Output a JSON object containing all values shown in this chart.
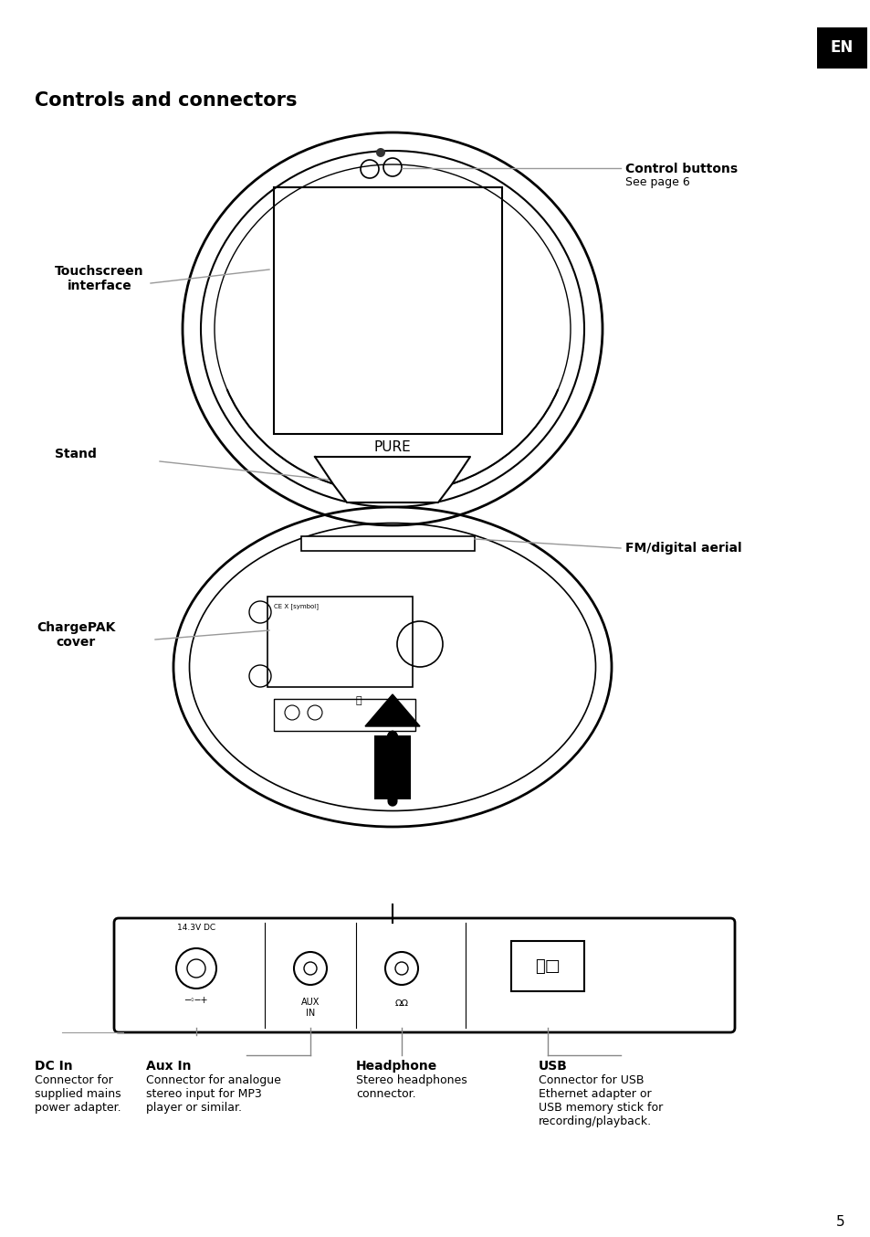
{
  "title": "Controls and connectors",
  "page_number": "5",
  "lang_badge": "EN",
  "bg_color": "#ffffff",
  "text_color": "#000000",
  "line_color": "#000000",
  "gray_line_color": "#999999",
  "labels": {
    "control_buttons": {
      "title": "Control buttons",
      "sub": "See page 6"
    },
    "touchscreen": {
      "title": "Touchscreen\ninterface"
    },
    "stand": {
      "title": "Stand"
    },
    "fm_aerial": {
      "title": "FM/digital aerial"
    },
    "chargepak": {
      "title": "ChargePAK\ncover"
    },
    "dc_in": {
      "title": "DC In",
      "sub": "Connector for\nsupplied mains\npower adapter."
    },
    "aux_in": {
      "title": "Aux In",
      "sub": "Connector for analogue\nstereo input for MP3\nplayer or similar."
    },
    "headphone": {
      "title": "Headphone",
      "sub": "Stereo headphones\nconnector."
    },
    "usb": {
      "title": "USB",
      "sub": "Connector for USB\nEthernet adapter or\nUSB memory stick for\nrecording/playback."
    }
  },
  "pure_text": "PURE"
}
